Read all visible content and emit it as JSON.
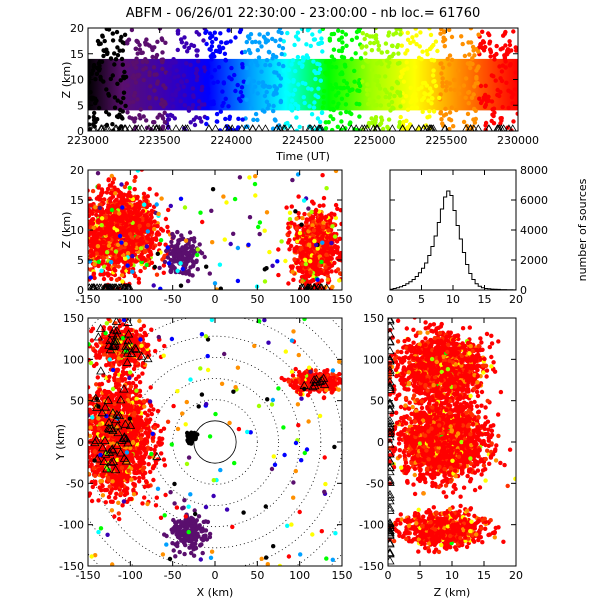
{
  "title": "ABFM - 06/26/01 22:30:00 - 23:00:00 - nb loc.= 61760",
  "chart_data": [
    {
      "panel": "time-height",
      "type": "scatter",
      "xlabel": "Time (UT)",
      "ylabel": "Z (km)",
      "xlim": [
        223000,
        230000
      ],
      "ylim": [
        0,
        20
      ],
      "x_ticks": [
        "223000",
        "223500",
        "224000",
        "224500",
        "225000",
        "225500",
        "230000"
      ],
      "y_ticks": [
        "0",
        "5",
        "10",
        "15",
        "20"
      ],
      "color_by": "time",
      "colormap": [
        "#000000",
        "#5a0f6e",
        "#3a00b4",
        "#0000ff",
        "#00a0ff",
        "#00ffff",
        "#00ff00",
        "#a0ff00",
        "#ffff00",
        "#ff9000",
        "#ff0000"
      ],
      "dense_band": [
        4,
        14
      ],
      "sparse_range": [
        0,
        20
      ],
      "ground_markers": "triangles along Z=0"
    },
    {
      "panel": "x-height",
      "type": "scatter",
      "xlabel": "",
      "ylabel": "Z (km)",
      "xlim": [
        -150,
        150
      ],
      "ylim": [
        0,
        20
      ],
      "x_ticks": [
        "-150",
        "-100",
        "-50",
        "0",
        "50",
        "100",
        "150"
      ],
      "y_ticks": [
        "0",
        "5",
        "10",
        "15",
        "20"
      ],
      "clusters": [
        {
          "x": -113,
          "z": 9.5,
          "note": "large storm"
        },
        {
          "x": -38,
          "z": 5.5,
          "note": "small cell"
        },
        {
          "x": 118,
          "z": 7,
          "note": "eastern storm"
        }
      ]
    },
    {
      "panel": "height-histogram",
      "type": "bar",
      "xlabel": "",
      "ylabel": "number of sources",
      "xlim": [
        0,
        20
      ],
      "ylim": [
        0,
        8000
      ],
      "x_ticks": [
        "0",
        "5",
        "10",
        "15",
        "20"
      ],
      "y_ticks": [
        "0",
        "2000",
        "4000",
        "6000",
        "8000"
      ],
      "bin_width_km": 0.5,
      "values": [
        50,
        100,
        150,
        220,
        300,
        420,
        550,
        700,
        900,
        1150,
        1450,
        1800,
        2300,
        2900,
        3600,
        4500,
        5400,
        6200,
        6600,
        6300,
        5300,
        4300,
        3400,
        2500,
        1700,
        1100,
        700,
        420,
        250,
        150,
        100,
        80,
        60,
        50,
        40,
        30,
        25,
        20,
        15,
        10
      ]
    },
    {
      "panel": "plan-view",
      "type": "scatter",
      "xlabel": "X (km)",
      "ylabel": "Y (km)",
      "xlim": [
        -150,
        150
      ],
      "ylim": [
        -150,
        150
      ],
      "x_ticks": [
        "-150",
        "-100",
        "-50",
        "0",
        "50",
        "100",
        "150"
      ],
      "y_ticks": [
        "-150",
        "-100",
        "-50",
        "0",
        "50",
        "100",
        "150"
      ],
      "range_rings_km": [
        25,
        50,
        75,
        100,
        125,
        150,
        175,
        200
      ],
      "solid_ring_km": 25,
      "clusters": [
        {
          "x": -115,
          "y": 5,
          "note": "western storm"
        },
        {
          "x": -110,
          "y": 115,
          "note": "northwest storm"
        },
        {
          "x": 120,
          "y": 72,
          "note": "eastern storm"
        },
        {
          "x": -32,
          "y": -110,
          "note": "southern cell"
        },
        {
          "x": -28,
          "y": 5,
          "note": "small cell"
        }
      ]
    },
    {
      "panel": "height-y",
      "type": "scatter",
      "xlabel": "Z (km)",
      "ylabel": "",
      "xlim": [
        0,
        20
      ],
      "ylim": [
        -150,
        150
      ],
      "x_ticks": [
        "0",
        "5",
        "10",
        "15",
        "20"
      ],
      "y_ticks": [
        "-150",
        "-100",
        "-50",
        "0",
        "50",
        "100",
        "150"
      ]
    }
  ]
}
